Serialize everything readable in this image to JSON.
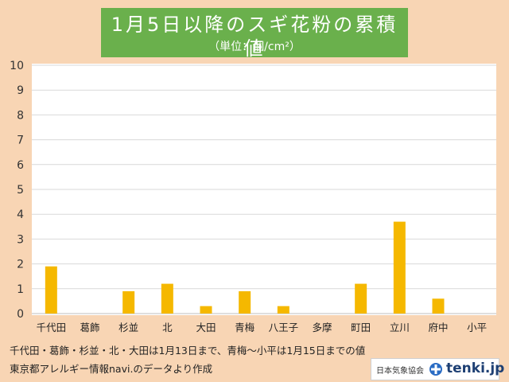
{
  "title": "1月5日以降のスギ花粉の累積値",
  "subtitle": "（単位：個/cm²）",
  "footnote_1": "千代田・葛飾・杉並・北・大田は1月13日まで、青梅～小平は1月15日までの値",
  "footnote_2": "東京都アレルギー情報navi.のデータより作成",
  "logo": {
    "org": "日本気象協会",
    "brand": "tenki.jp",
    "icon": "tenki-logo-icon"
  },
  "colors": {
    "bar": "#f5b800",
    "background": "#f8d5b4",
    "title_bg": "#6ab04c"
  },
  "chart_data": {
    "type": "bar",
    "categories": [
      "千代田",
      "葛飾",
      "杉並",
      "北",
      "大田",
      "青梅",
      "八王子",
      "多摩",
      "町田",
      "立川",
      "府中",
      "小平"
    ],
    "values": [
      1.9,
      0,
      0.9,
      1.2,
      0.3,
      0.9,
      0.3,
      0,
      1.2,
      3.7,
      0.6,
      0
    ],
    "ylim": [
      0,
      10
    ],
    "yticks": [
      "0",
      "1",
      "2",
      "3",
      "4",
      "5",
      "6",
      "7",
      "8",
      "9",
      "10"
    ],
    "grid": true,
    "xlabel": "",
    "ylabel": ""
  }
}
